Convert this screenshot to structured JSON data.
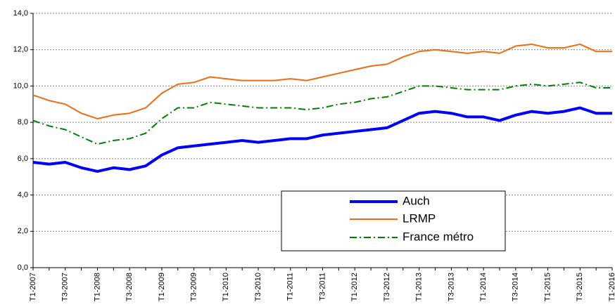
{
  "chart_data": {
    "type": "line",
    "categories": [
      "T1-2007",
      null,
      "T3-2007",
      null,
      "T1-2008",
      null,
      "T3-2008",
      null,
      "T1-2009",
      null,
      "T3-2009",
      null,
      "T1-2010",
      null,
      "T3-2010",
      null,
      "T1-2011",
      null,
      "T3-2011",
      null,
      "T1-2012",
      null,
      "T3-2012",
      null,
      "T1-2013",
      null,
      "T3-2013",
      null,
      "T1-2014",
      null,
      "T3-2014",
      null,
      "T1-2015",
      null,
      "T3-2015",
      null,
      "T1-2016"
    ],
    "series": [
      {
        "name": "Auch",
        "color": "#0000ff",
        "linewidth": 4,
        "linestyle": "solid",
        "values": [
          5.8,
          5.7,
          5.8,
          5.5,
          5.3,
          5.5,
          5.4,
          5.6,
          6.2,
          6.6,
          6.7,
          6.8,
          6.9,
          7.0,
          6.9,
          7.0,
          7.1,
          7.1,
          7.3,
          7.4,
          7.5,
          7.6,
          7.7,
          8.1,
          8.5,
          8.6,
          8.5,
          8.3,
          8.3,
          8.1,
          8.4,
          8.6,
          8.5,
          8.6,
          8.8,
          8.5,
          8.5
        ]
      },
      {
        "name": "LRMP",
        "color": "#f26b10",
        "linewidth": 2,
        "linestyle": "solid",
        "values": [
          9.5,
          9.2,
          9.0,
          8.5,
          8.2,
          8.4,
          8.5,
          8.8,
          9.6,
          10.1,
          10.2,
          10.5,
          10.4,
          10.3,
          10.3,
          10.3,
          10.4,
          10.3,
          10.5,
          10.7,
          10.9,
          11.1,
          11.2,
          11.6,
          11.9,
          12.0,
          11.9,
          11.8,
          11.9,
          11.8,
          12.2,
          12.3,
          12.1,
          12.1,
          12.3,
          11.9,
          11.9
        ]
      },
      {
        "name": "France métro",
        "color": "#008000",
        "linewidth": 2,
        "linestyle": "dashdot",
        "values": [
          8.1,
          7.8,
          7.6,
          7.2,
          6.8,
          7.0,
          7.1,
          7.4,
          8.2,
          8.8,
          8.8,
          9.1,
          9.0,
          8.9,
          8.8,
          8.8,
          8.8,
          8.7,
          8.8,
          9.0,
          9.1,
          9.3,
          9.4,
          9.7,
          10.0,
          10.0,
          9.9,
          9.8,
          9.8,
          9.8,
          10.0,
          10.1,
          10.0,
          10.1,
          10.2,
          9.9,
          9.9
        ]
      }
    ],
    "ylim": [
      0,
      14
    ],
    "yticks": [
      {
        "value": 0,
        "label": "0,0"
      },
      {
        "value": 2,
        "label": "2,0"
      },
      {
        "value": 4,
        "label": "4,0"
      },
      {
        "value": 6,
        "label": "6,0"
      },
      {
        "value": 8,
        "label": "8,0"
      },
      {
        "value": 10,
        "label": "10,0"
      },
      {
        "value": 12,
        "label": "12,0"
      },
      {
        "value": 14,
        "label": "14,0"
      }
    ],
    "grid": true
  }
}
